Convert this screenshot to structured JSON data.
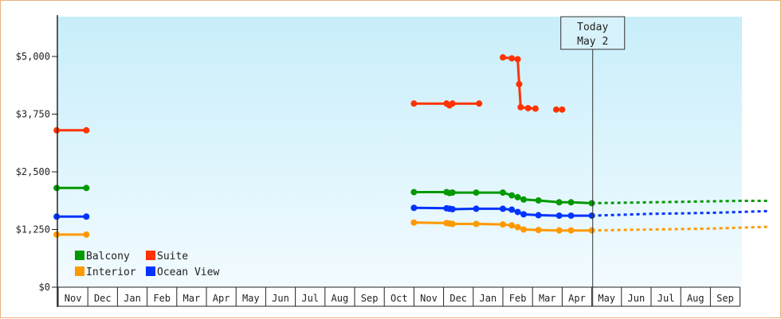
{
  "chart_data": {
    "type": "line",
    "title": "",
    "xlabel": "",
    "ylabel": "",
    "ylim": [
      0,
      6000
    ],
    "y_ticks": [
      "$0",
      "$1,250",
      "$2,500",
      "$3,750",
      "$5,000"
    ],
    "y_tick_values": [
      0,
      1250,
      2500,
      3750,
      5000
    ],
    "x_months": [
      "Nov",
      "Dec",
      "Jan",
      "Feb",
      "Mar",
      "Apr",
      "May",
      "Jun",
      "Jul",
      "Aug",
      "Sep",
      "Oct",
      "Nov",
      "Dec",
      "Jan",
      "Feb",
      "Mar",
      "Apr",
      "May",
      "Jun",
      "Jul",
      "Aug",
      "Sep"
    ],
    "grid": false,
    "legend_position": "bottom-left",
    "today": {
      "line1": "Today",
      "line2": "May 2",
      "month_index": 18.03
    },
    "series": [
      {
        "name": "Balcony",
        "color": "#009900",
        "points": [
          [
            -0.05,
            2150
          ],
          [
            0.95,
            2150
          ],
          [
            12,
            2060
          ],
          [
            13.1,
            2060
          ],
          [
            13.2,
            2040
          ],
          [
            13.3,
            2050
          ],
          [
            14.1,
            2050
          ],
          [
            15,
            2050
          ],
          [
            15.3,
            1990
          ],
          [
            15.5,
            1950
          ],
          [
            15.7,
            1900
          ],
          [
            16.2,
            1880
          ],
          [
            16.9,
            1840
          ],
          [
            17.3,
            1840
          ],
          [
            18,
            1820
          ]
        ],
        "forecast": [
          [
            18,
            1820
          ],
          [
            19,
            1830
          ],
          [
            20,
            1840
          ],
          [
            21,
            1850
          ],
          [
            22,
            1860
          ],
          [
            23,
            1870
          ],
          [
            24,
            1870
          ]
        ]
      },
      {
        "name": "Suite",
        "color": "#ff3300",
        "points": [
          [
            -0.05,
            3400
          ],
          [
            0.95,
            3400
          ]
        ],
        "segments": [
          [
            [
              12,
              3980
            ],
            [
              13.1,
              3980
            ],
            [
              13.2,
              3940
            ],
            [
              13.3,
              3980
            ],
            [
              14.2,
              3980
            ]
          ],
          [
            [
              15,
              4980
            ],
            [
              15.3,
              4960
            ],
            [
              15.5,
              4940
            ],
            [
              15.55,
              4400
            ],
            [
              15.6,
              3900
            ],
            [
              15.85,
              3880
            ],
            [
              16.1,
              3870
            ]
          ],
          [
            [
              16.8,
              3850
            ],
            [
              17.0,
              3850
            ]
          ]
        ]
      },
      {
        "name": "Interior",
        "color": "#ff9900",
        "points": [
          [
            -0.05,
            1140
          ],
          [
            0.95,
            1140
          ],
          [
            12,
            1400
          ],
          [
            13.1,
            1390
          ],
          [
            13.2,
            1380
          ],
          [
            13.3,
            1370
          ],
          [
            14.1,
            1370
          ],
          [
            15,
            1360
          ],
          [
            15.3,
            1340
          ],
          [
            15.5,
            1300
          ],
          [
            15.7,
            1250
          ],
          [
            16.2,
            1240
          ],
          [
            16.9,
            1230
          ],
          [
            17.3,
            1230
          ],
          [
            18,
            1230
          ]
        ],
        "forecast": [
          [
            18,
            1230
          ],
          [
            19,
            1240
          ],
          [
            20,
            1250
          ],
          [
            21,
            1260
          ],
          [
            22,
            1270
          ],
          [
            23,
            1290
          ],
          [
            24,
            1310
          ]
        ]
      },
      {
        "name": "Ocean View",
        "color": "#0033ff",
        "points": [
          [
            -0.05,
            1530
          ],
          [
            0.95,
            1530
          ],
          [
            12,
            1720
          ],
          [
            13.1,
            1710
          ],
          [
            13.2,
            1700
          ],
          [
            13.3,
            1690
          ],
          [
            14.1,
            1700
          ],
          [
            15,
            1700
          ],
          [
            15.3,
            1680
          ],
          [
            15.5,
            1630
          ],
          [
            15.7,
            1580
          ],
          [
            16.2,
            1560
          ],
          [
            16.9,
            1550
          ],
          [
            17.3,
            1550
          ],
          [
            18,
            1550
          ]
        ],
        "forecast": [
          [
            18,
            1550
          ],
          [
            19,
            1570
          ],
          [
            20,
            1590
          ],
          [
            21,
            1600
          ],
          [
            22,
            1610
          ],
          [
            23,
            1630
          ],
          [
            24,
            1650
          ]
        ]
      }
    ],
    "legend": [
      {
        "name": "Balcony",
        "color": "#009900"
      },
      {
        "name": "Suite",
        "color": "#ff3300"
      },
      {
        "name": "Interior",
        "color": "#ff9900"
      },
      {
        "name": "Ocean View",
        "color": "#0033ff"
      }
    ],
    "background_gradient": [
      "#c8eefa",
      "#f2fbff"
    ]
  }
}
